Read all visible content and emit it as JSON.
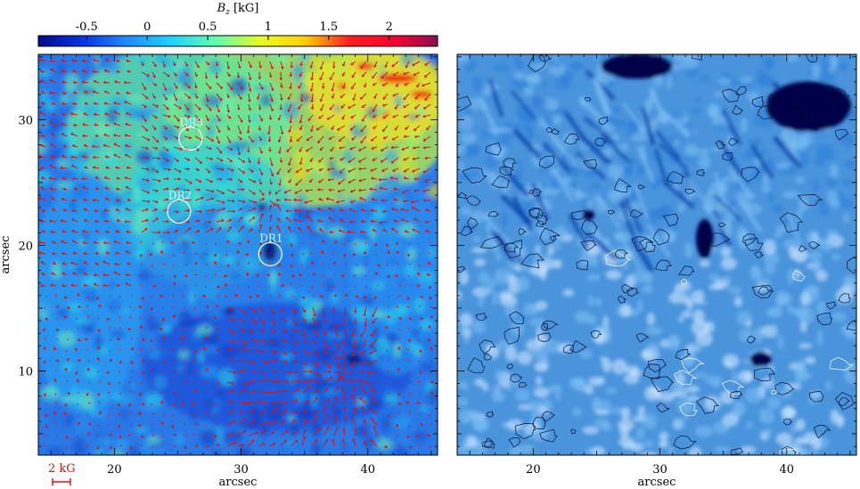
{
  "colorbar": {
    "title_var": "B",
    "title_sub": "z",
    "title_unit": "[kG]",
    "ticks": [
      "-0.5",
      "0",
      "0.5",
      "1",
      "1.5",
      "2"
    ],
    "tick_values": [
      -0.5,
      0,
      0.5,
      1,
      1.5,
      2
    ],
    "range": [
      -0.9,
      2.4
    ]
  },
  "scale_bar_label": "2 kG",
  "left_panel": {
    "ylabel": "arcsec",
    "xlabel": "arcsec",
    "labels": [
      "DR3",
      "DR2",
      "DR1"
    ]
  },
  "right_panel": {
    "xlabel": "arcsec"
  },
  "colors": {
    "arrow": "#e01010",
    "colorbar_stops": [
      "#000a8c",
      "#0a32e6",
      "#1e8cff",
      "#20d2ff",
      "#60ffb0",
      "#e6ff20",
      "#ffd000",
      "#ff2020",
      "#ff0030",
      "#8c1050"
    ],
    "right_palette": [
      "#00004a",
      "#003aa6",
      "#2e80d8",
      "#7cbcf2",
      "#cfe6ff"
    ]
  },
  "chart_data": [
    {
      "type": "heatmap",
      "title": "",
      "quantity": "B_z [kG]",
      "xlabel": "arcsec",
      "ylabel": "arcsec",
      "xlim": [
        14,
        45.5
      ],
      "ylim": [
        3.3,
        35.2
      ],
      "xticks": [
        20,
        30,
        40
      ],
      "yticks": [
        10,
        20,
        30
      ],
      "overlay": "transverse field vectors (red arrows)",
      "features": [
        {
          "label": "DR3",
          "x": 26.0,
          "y": 28.5
        },
        {
          "label": "DR2",
          "x": 25.1,
          "y": 22.7
        },
        {
          "label": "DR1",
          "x": 32.3,
          "y": 19.3
        }
      ]
    },
    {
      "type": "heatmap",
      "title": "",
      "quantity": "intensity image with B_z contours",
      "xlabel": "arcsec",
      "ylabel": "",
      "xlim": [
        14,
        45.5
      ],
      "ylim": [
        3.3,
        35.2
      ],
      "xticks": [
        20,
        30,
        40
      ],
      "yticks": [
        10,
        20,
        30
      ],
      "contours": [
        "black",
        "white"
      ]
    }
  ]
}
